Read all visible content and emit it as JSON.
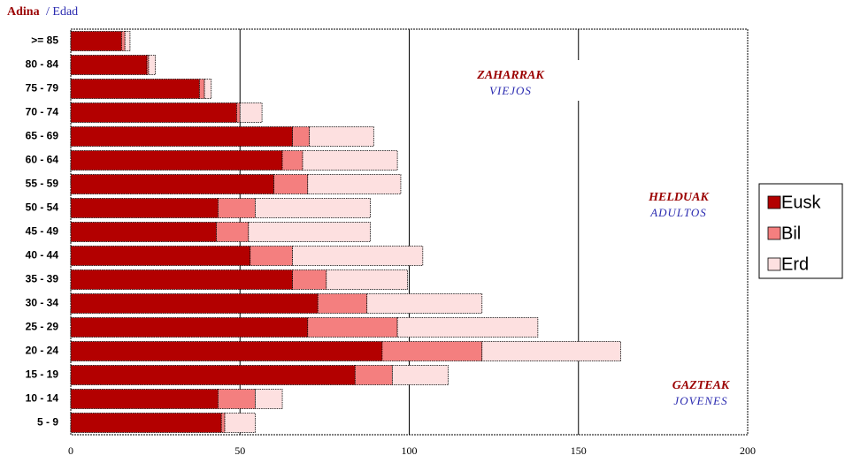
{
  "chart_data": {
    "type": "stacked-bar-horizontal",
    "title": "Adina",
    "subtitle": "/ Edad",
    "categories": [
      ">= 85",
      "80 - 84",
      "75 - 79",
      "70 - 74",
      "65 - 69",
      "60 - 64",
      "55 - 59",
      "50 - 54",
      "45 - 49",
      "40 - 44",
      "35 - 39",
      "30 - 34",
      "25 - 29",
      "20 - 24",
      "15 - 19",
      "10 - 14",
      "5 - 9"
    ],
    "series": [
      {
        "name": "Eusk",
        "color": "#b30000",
        "values": [
          15,
          22.5,
          38,
          49,
          65.5,
          62.5,
          60,
          43.5,
          43,
          53,
          65.5,
          73,
          70,
          92,
          84,
          43.5,
          44.5
        ]
      },
      {
        "name": "Bil",
        "color": "#f47f7f",
        "values": [
          1,
          0.5,
          1.5,
          1,
          5,
          6,
          10,
          11,
          9.5,
          12.5,
          10,
          14.5,
          26.5,
          29.5,
          11,
          11,
          1
        ]
      },
      {
        "name": "Erd",
        "color": "#fde0e0",
        "values": [
          1.5,
          2,
          2,
          6.5,
          19,
          28,
          27.5,
          34,
          36,
          38.5,
          24,
          34,
          41.5,
          41,
          16.5,
          8,
          9
        ]
      }
    ],
    "xlim": [
      0,
      200
    ],
    "xticks": [
      0,
      50,
      100,
      150,
      200
    ],
    "grid": true,
    "legend": "right",
    "annotations": [
      {
        "label": "ZAHARRAK",
        "translation": "VIEJOS"
      },
      {
        "label": "HELDUAK",
        "translation": "ADULTOS"
      },
      {
        "label": "GAZTEAK",
        "translation": "JOVENES"
      }
    ]
  }
}
